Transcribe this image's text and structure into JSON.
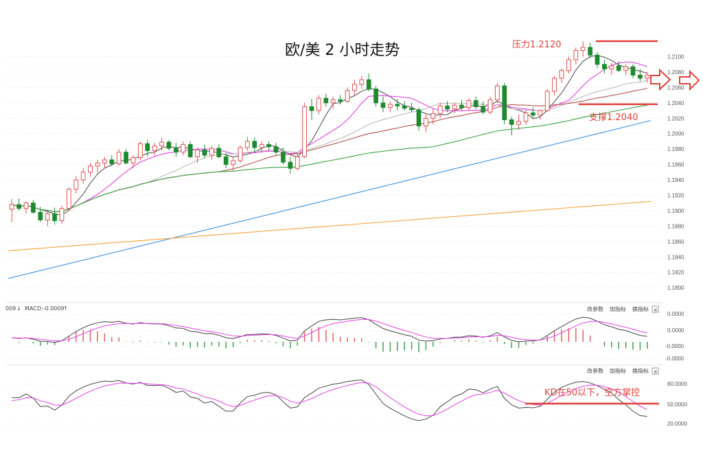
{
  "chart_data": {
    "type": "candlestick",
    "title": "欧/美 2 小时走势",
    "price_panel": {
      "ylim": [
        1.1785,
        1.2145
      ],
      "yticks": [
        "1.1800",
        "1.1820",
        "1.1840",
        "1.1860",
        "1.1880",
        "1.1900",
        "1.1920",
        "1.1940",
        "1.1960",
        "1.1980",
        "1.2000",
        "1.2020",
        "1.2040",
        "1.2060",
        "1.2080",
        "1.2100"
      ],
      "candles": [
        [
          1.1902,
          1.1915,
          1.1885,
          1.1908
        ],
        [
          1.1908,
          1.1916,
          1.19,
          1.1903
        ],
        [
          1.1903,
          1.1912,
          1.1896,
          1.191
        ],
        [
          1.191,
          1.1914,
          1.1896,
          1.1898
        ],
        [
          1.1898,
          1.1905,
          1.1885,
          1.1888
        ],
        [
          1.1888,
          1.19,
          1.188,
          1.1896
        ],
        [
          1.1896,
          1.1904,
          1.1882,
          1.1887
        ],
        [
          1.1887,
          1.1906,
          1.1883,
          1.1903
        ],
        [
          1.1903,
          1.193,
          1.19,
          1.1928
        ],
        [
          1.1928,
          1.1945,
          1.1922,
          1.194
        ],
        [
          1.194,
          1.1955,
          1.1935,
          1.195
        ],
        [
          1.195,
          1.1962,
          1.1944,
          1.1958
        ],
        [
          1.1958,
          1.1966,
          1.195,
          1.1962
        ],
        [
          1.1962,
          1.197,
          1.1955,
          1.1966
        ],
        [
          1.1966,
          1.1972,
          1.1958,
          1.1961
        ],
        [
          1.1961,
          1.198,
          1.1958,
          1.1976
        ],
        [
          1.1976,
          1.198,
          1.196,
          1.1962
        ],
        [
          1.1962,
          1.1972,
          1.1955,
          1.1969
        ],
        [
          1.1969,
          1.199,
          1.1965,
          1.1987
        ],
        [
          1.1987,
          1.1992,
          1.197,
          1.1978
        ],
        [
          1.1978,
          1.1988,
          1.1972,
          1.1984
        ],
        [
          1.1984,
          1.1995,
          1.1978,
          1.1989
        ],
        [
          1.1989,
          1.1992,
          1.1978,
          1.1981
        ],
        [
          1.1981,
          1.1988,
          1.197,
          1.1976
        ],
        [
          1.1976,
          1.199,
          1.1972,
          1.1986
        ],
        [
          1.1986,
          1.199,
          1.1968,
          1.197
        ],
        [
          1.197,
          1.1982,
          1.1962,
          1.1979
        ],
        [
          1.1979,
          1.1986,
          1.1968,
          1.1972
        ],
        [
          1.1972,
          1.1984,
          1.1966,
          1.1981
        ],
        [
          1.1981,
          1.1986,
          1.1968,
          1.197
        ],
        [
          1.197,
          1.1975,
          1.1955,
          1.196
        ],
        [
          1.196,
          1.197,
          1.1952,
          1.1965
        ],
        [
          1.1965,
          1.1985,
          1.1962,
          1.1982
        ],
        [
          1.1982,
          1.1996,
          1.1978,
          1.199
        ],
        [
          1.199,
          1.1995,
          1.1976,
          1.1982
        ],
        [
          1.1982,
          1.199,
          1.1975,
          1.1986
        ],
        [
          1.1986,
          1.199,
          1.1978,
          1.1983
        ],
        [
          1.1983,
          1.1988,
          1.1972,
          1.1976
        ],
        [
          1.1976,
          1.1982,
          1.196,
          1.1963
        ],
        [
          1.1963,
          1.197,
          1.1948,
          1.1955
        ],
        [
          1.1955,
          1.1975,
          1.1952,
          1.197
        ],
        [
          1.197,
          1.204,
          1.1968,
          1.2035
        ],
        [
          1.2035,
          1.2045,
          1.2018,
          1.203
        ],
        [
          1.203,
          1.205,
          1.2025,
          1.2046
        ],
        [
          1.2046,
          1.2052,
          1.2035,
          1.204
        ],
        [
          1.204,
          1.2048,
          1.2032,
          1.2044
        ],
        [
          1.2044,
          1.205,
          1.2038,
          1.2042
        ],
        [
          1.2042,
          1.206,
          1.204,
          1.2056
        ],
        [
          1.2056,
          1.207,
          1.205,
          1.2064
        ],
        [
          1.2064,
          1.2075,
          1.2058,
          1.207
        ],
        [
          1.207,
          1.2078,
          1.2055,
          1.2058
        ],
        [
          1.2058,
          1.2062,
          1.2035,
          1.204
        ],
        [
          1.204,
          1.2048,
          1.2028,
          1.2034
        ],
        [
          1.2034,
          1.2042,
          1.2028,
          1.2038
        ],
        [
          1.2038,
          1.2045,
          1.203,
          1.2036
        ],
        [
          1.2036,
          1.2042,
          1.203,
          1.2033
        ],
        [
          1.2033,
          1.204,
          1.2028,
          1.2031
        ],
        [
          1.2031,
          1.2034,
          1.2004,
          1.201
        ],
        [
          1.201,
          1.2025,
          1.2002,
          1.202
        ],
        [
          1.202,
          1.2032,
          1.2012,
          1.2026
        ],
        [
          1.2026,
          1.204,
          1.202,
          1.2036
        ],
        [
          1.2036,
          1.2042,
          1.2028,
          1.2032
        ],
        [
          1.2032,
          1.204,
          1.2026,
          1.2037
        ],
        [
          1.2037,
          1.2044,
          1.203,
          1.2034
        ],
        [
          1.2034,
          1.2046,
          1.203,
          1.2043
        ],
        [
          1.2043,
          1.2048,
          1.2032,
          1.2035
        ],
        [
          1.2035,
          1.2042,
          1.2025,
          1.2028
        ],
        [
          1.2028,
          1.2048,
          1.2025,
          1.2044
        ],
        [
          1.2044,
          1.2066,
          1.204,
          1.2062
        ],
        [
          1.2062,
          1.2066,
          1.2012,
          1.2018
        ],
        [
          1.2018,
          1.2022,
          1.1998,
          1.2012
        ],
        [
          1.2012,
          1.2025,
          1.2005,
          1.2016
        ],
        [
          1.2016,
          1.203,
          1.2012,
          1.2027
        ],
        [
          1.2027,
          1.2034,
          1.202,
          1.2024
        ],
        [
          1.2024,
          1.2032,
          1.2018,
          1.203
        ],
        [
          1.203,
          1.2058,
          1.2028,
          1.2055
        ],
        [
          1.2055,
          1.2075,
          1.205,
          1.2072
        ],
        [
          1.2072,
          1.2085,
          1.2066,
          1.2082
        ],
        [
          1.2082,
          1.21,
          1.2078,
          1.2096
        ],
        [
          1.2096,
          1.2112,
          1.209,
          1.2108
        ],
        [
          1.2108,
          1.212,
          1.21,
          1.2112
        ],
        [
          1.2112,
          1.2118,
          1.2098,
          1.2102
        ],
        [
          1.2102,
          1.2106,
          1.2085,
          1.209
        ],
        [
          1.209,
          1.2096,
          1.2078,
          1.2084
        ],
        [
          1.2084,
          1.2092,
          1.2076,
          1.2088
        ],
        [
          1.2088,
          1.2094,
          1.208,
          1.2082
        ],
        [
          1.2082,
          1.209,
          1.2076,
          1.2087
        ],
        [
          1.2087,
          1.209,
          1.2072,
          1.2076
        ],
        [
          1.2076,
          1.2084,
          1.2068,
          1.2072
        ],
        [
          1.2072,
          1.208,
          1.2066,
          1.2076
        ]
      ],
      "moving_averages": [
        {
          "color": "#555555",
          "period": 5
        },
        {
          "color": "#e040e0",
          "period": 10
        },
        {
          "color": "#bbbbbb",
          "period": 20
        },
        {
          "color": "#b05050",
          "period": 30
        },
        {
          "color": "#3aa040",
          "period": 60
        },
        {
          "color": "#3a8fdf",
          "values_from": 1.1812,
          "values_to": 1.2017
        },
        {
          "color": "#f2a33a",
          "values_from": 1.1848,
          "values_to": 1.1912
        }
      ],
      "resistance": {
        "value": 1.212,
        "label": "压力1.2120",
        "color": "#e0403a"
      },
      "support": {
        "value": 1.204,
        "label": "支撑1.2040",
        "color": "#e0403a"
      }
    },
    "macd_panel": {
      "header_prefix": "009",
      "header_label": "MACD:-0.0009",
      "yticks": [
        "0.0000",
        "0.0000",
        "-0.0000",
        "-0.0000"
      ],
      "buttons": [
        "改参数",
        "加指标",
        "换指标"
      ]
    },
    "kd_panel": {
      "yticks": [
        "80.0000",
        "50.0000",
        "20.0000"
      ],
      "buttons": [
        "改参数",
        "加指标",
        "换指标"
      ],
      "threshold": 50,
      "annotation": "KD在50以下，空方掌控"
    }
  }
}
